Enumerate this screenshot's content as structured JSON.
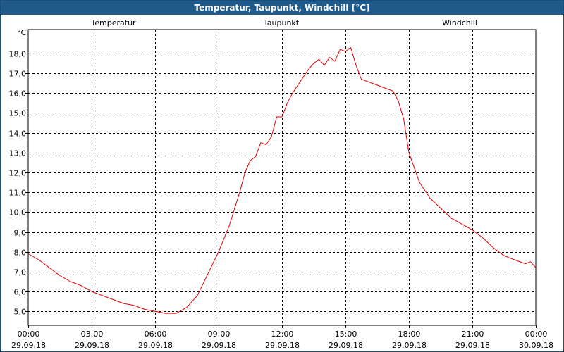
{
  "title": "Temperatur, Taupunkt, Windchill [°C]",
  "unit": "°C",
  "colors": {
    "temperatur": "#e00000",
    "taupunkt": "#000090",
    "windchill": "#00a000",
    "titlebar": "#1f5a8a"
  },
  "chart_data": {
    "type": "line",
    "title": "Temperatur, Taupunkt, Windchill [°C]",
    "ylabel": "°C",
    "xlabel": "",
    "ylim": [
      4.3,
      19.2
    ],
    "xlim_hours": [
      0,
      24
    ],
    "grid": true,
    "legend": "top",
    "legend_entries": [
      "Temperatur",
      "Taupunkt",
      "Windchill"
    ],
    "y_ticks": [
      "5,0",
      "6,0",
      "7,0",
      "8,0",
      "9,0",
      "10,0",
      "11,0",
      "12,0",
      "13,0",
      "14,0",
      "15,0",
      "16,0",
      "17,0",
      "18,0"
    ],
    "x_ticks": [
      {
        "time": "00:00",
        "date": "29.09.18"
      },
      {
        "time": "03:00",
        "date": "29.09.18"
      },
      {
        "time": "06:00",
        "date": "29.09.18"
      },
      {
        "time": "09:00",
        "date": "29.09.18"
      },
      {
        "time": "12:00",
        "date": "29.09.18"
      },
      {
        "time": "15:00",
        "date": "29.09.18"
      },
      {
        "time": "18:00",
        "date": "29.09.18"
      },
      {
        "time": "21:00",
        "date": "29.09.18"
      },
      {
        "time": "00:00",
        "date": "30.09.18"
      }
    ],
    "series": [
      {
        "name": "Temperatur",
        "x": [
          0,
          0.5,
          1,
          1.5,
          2,
          2.5,
          3,
          3.5,
          4,
          4.5,
          5,
          5.5,
          6,
          6.5,
          7,
          7.5,
          8,
          8.5,
          9,
          9.5,
          10,
          10.25,
          10.5,
          10.75,
          11,
          11.25,
          11.5,
          11.75,
          12,
          12.25,
          12.5,
          12.75,
          13,
          13.25,
          13.5,
          13.75,
          14,
          14.25,
          14.5,
          14.75,
          15,
          15.25,
          15.5,
          15.75,
          16,
          16.5,
          17,
          17.25,
          17.5,
          17.75,
          18,
          18.5,
          19,
          19.5,
          20,
          20.5,
          21,
          21.5,
          22,
          22.5,
          23,
          23.5,
          23.75,
          24
        ],
        "y": [
          7.9,
          7.6,
          7.2,
          6.8,
          6.5,
          6.3,
          6.0,
          5.8,
          5.6,
          5.4,
          5.3,
          5.1,
          5.0,
          4.9,
          4.9,
          5.2,
          5.8,
          6.9,
          8.0,
          9.3,
          11.0,
          12.0,
          12.6,
          12.8,
          13.5,
          13.4,
          13.8,
          14.8,
          14.8,
          15.5,
          16.0,
          16.4,
          16.8,
          17.2,
          17.5,
          17.7,
          17.4,
          17.8,
          17.6,
          18.2,
          18.1,
          18.3,
          17.4,
          16.7,
          16.6,
          16.4,
          16.2,
          16.1,
          15.6,
          14.7,
          13.0,
          11.5,
          10.7,
          10.2,
          9.7,
          9.4,
          9.1,
          8.7,
          8.2,
          7.8,
          7.6,
          7.4,
          7.5,
          7.2
        ]
      }
    ]
  }
}
